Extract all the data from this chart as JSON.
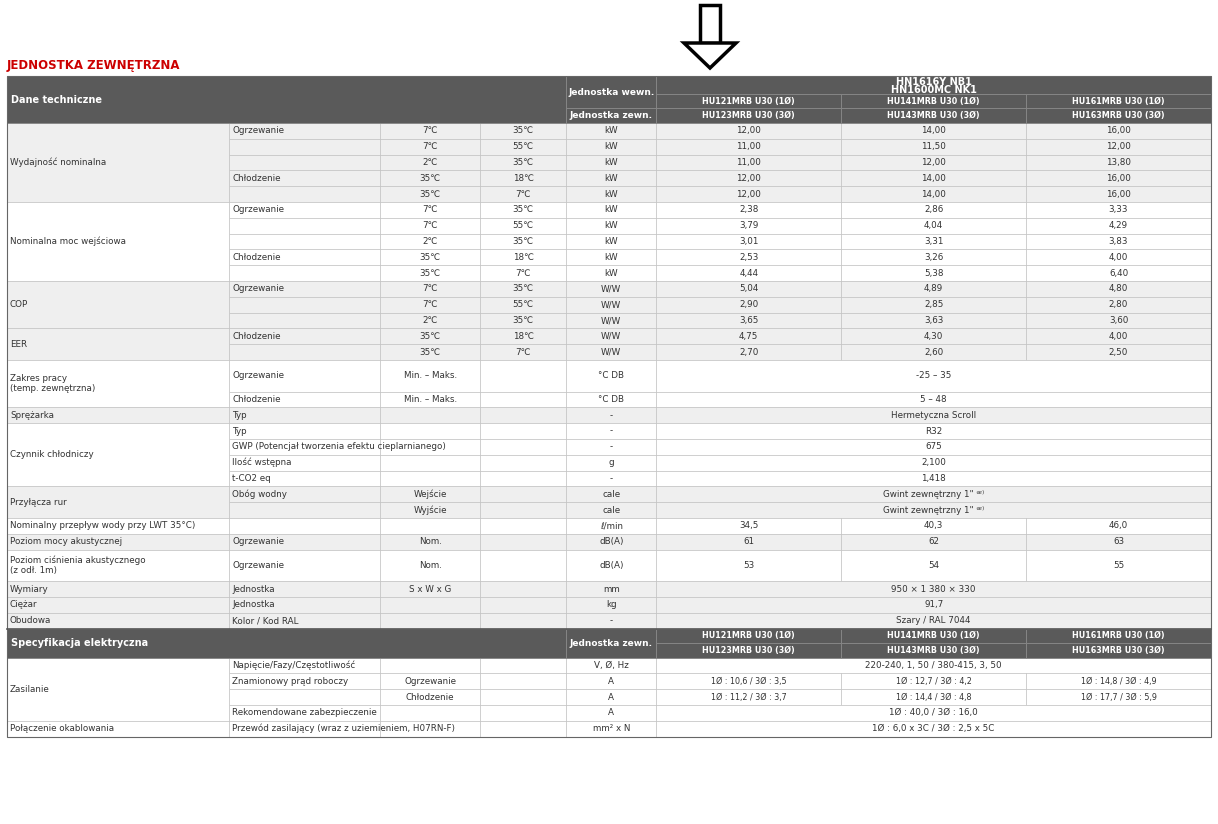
{
  "title": "JEDNOSTKA ZEWNĘTRZNA",
  "title_color": "#cc0000",
  "header_bg": "#5a5a5a",
  "header_fg": "#ffffff",
  "row_bg_light": "#efefef",
  "row_bg_white": "#ffffff",
  "col3_header_line1": "HU121MRB U30 (1Ø)",
  "col3_header_line2": "HU123MRB U30 (3Ø)",
  "col4_header_line1": "HU141MRB U30 (1Ø)",
  "col4_header_line2": "HU143MRB U30 (3Ø)",
  "col5_header_line1": "HU161MRB U30 (1Ø)",
  "col5_header_line2": "HU163MRB U30 (3Ø)",
  "rows": [
    {
      "group": "Wydajność nominalna",
      "sub": "Ogrzewanie",
      "c1": "7℃",
      "c2": "35℃",
      "unit": "kW",
      "v1": "12,00",
      "v2": "14,00",
      "v3": "16,00",
      "bg": "light"
    },
    {
      "group": "",
      "sub": "",
      "c1": "7℃",
      "c2": "55℃",
      "unit": "kW",
      "v1": "11,00",
      "v2": "11,50",
      "v3": "12,00",
      "bg": "light"
    },
    {
      "group": "",
      "sub": "",
      "c1": "2℃",
      "c2": "35℃",
      "unit": "kW",
      "v1": "11,00",
      "v2": "12,00",
      "v3": "13,80",
      "bg": "light"
    },
    {
      "group": "",
      "sub": "Chłodzenie",
      "c1": "35℃",
      "c2": "18℃",
      "unit": "kW",
      "v1": "12,00",
      "v2": "14,00",
      "v3": "16,00",
      "bg": "light"
    },
    {
      "group": "",
      "sub": "",
      "c1": "35℃",
      "c2": "7℃",
      "unit": "kW",
      "v1": "12,00",
      "v2": "14,00",
      "v3": "16,00",
      "bg": "light"
    },
    {
      "group": "Nominalna moc wejściowa",
      "sub": "Ogrzewanie",
      "c1": "7℃",
      "c2": "35℃",
      "unit": "kW",
      "v1": "2,38",
      "v2": "2,86",
      "v3": "3,33",
      "bg": "white"
    },
    {
      "group": "",
      "sub": "",
      "c1": "7℃",
      "c2": "55℃",
      "unit": "kW",
      "v1": "3,79",
      "v2": "4,04",
      "v3": "4,29",
      "bg": "white"
    },
    {
      "group": "",
      "sub": "",
      "c1": "2℃",
      "c2": "35℃",
      "unit": "kW",
      "v1": "3,01",
      "v2": "3,31",
      "v3": "3,83",
      "bg": "white"
    },
    {
      "group": "",
      "sub": "Chłodzenie",
      "c1": "35℃",
      "c2": "18℃",
      "unit": "kW",
      "v1": "2,53",
      "v2": "3,26",
      "v3": "4,00",
      "bg": "white"
    },
    {
      "group": "",
      "sub": "",
      "c1": "35℃",
      "c2": "7℃",
      "unit": "kW",
      "v1": "4,44",
      "v2": "5,38",
      "v3": "6,40",
      "bg": "white"
    },
    {
      "group": "COP",
      "sub": "Ogrzewanie",
      "c1": "7℃",
      "c2": "35℃",
      "unit": "W/W",
      "v1": "5,04",
      "v2": "4,89",
      "v3": "4,80",
      "bg": "light"
    },
    {
      "group": "",
      "sub": "",
      "c1": "7℃",
      "c2": "55℃",
      "unit": "W/W",
      "v1": "2,90",
      "v2": "2,85",
      "v3": "2,80",
      "bg": "light"
    },
    {
      "group": "",
      "sub": "",
      "c1": "2℃",
      "c2": "35℃",
      "unit": "W/W",
      "v1": "3,65",
      "v2": "3,63",
      "v3": "3,60",
      "bg": "light"
    },
    {
      "group": "EER",
      "sub": "Chłodzenie",
      "c1": "35℃",
      "c2": "18℃",
      "unit": "W/W",
      "v1": "4,75",
      "v2": "4,30",
      "v3": "4,00",
      "bg": "light"
    },
    {
      "group": "",
      "sub": "",
      "c1": "35℃",
      "c2": "7℃",
      "unit": "W/W",
      "v1": "2,70",
      "v2": "2,60",
      "v3": "2,50",
      "bg": "light"
    },
    {
      "group": "Zakres pracy\n(temp. zewnętrzna)",
      "sub": "Ogrzewanie",
      "c1": "Min. – Maks.",
      "c2": "",
      "unit": "°C DB",
      "v1": "",
      "v2": "-25 – 35",
      "v3": "",
      "bg": "white",
      "span": true
    },
    {
      "group": "",
      "sub": "Chłodzenie",
      "c1": "Min. – Maks.",
      "c2": "",
      "unit": "°C DB",
      "v1": "",
      "v2": "5 – 48",
      "v3": "",
      "bg": "white",
      "span": true
    },
    {
      "group": "Sprężarka",
      "sub": "Typ",
      "c1": "",
      "c2": "",
      "unit": "-",
      "v1": "",
      "v2": "Hermetyczna Scroll",
      "v3": "",
      "bg": "light",
      "span": true
    },
    {
      "group": "Czynnik chłodniczy",
      "sub": "Typ",
      "c1": "",
      "c2": "",
      "unit": "-",
      "v1": "",
      "v2": "R32",
      "v3": "",
      "bg": "white",
      "span": true
    },
    {
      "group": "",
      "sub": "GWP (Potencjał tworzenia efektu cieplarnianego)",
      "c1": "",
      "c2": "",
      "unit": "-",
      "v1": "",
      "v2": "675",
      "v3": "",
      "bg": "white",
      "span": true
    },
    {
      "group": "",
      "sub": "Ilość wstępna",
      "c1": "",
      "c2": "",
      "unit": "g",
      "v1": "",
      "v2": "2,100",
      "v3": "",
      "bg": "white",
      "span": true
    },
    {
      "group": "",
      "sub": "t-CO2 eq",
      "c1": "",
      "c2": "",
      "unit": "-",
      "v1": "",
      "v2": "1,418",
      "v3": "",
      "bg": "white",
      "span": true
    },
    {
      "group": "Przyłącza rur",
      "sub": "Obóg wodny",
      "c1": "Wejście",
      "c2": "",
      "unit": "cale",
      "v1": "",
      "v2": "Gwint zewnętrzny 1\" ᵆ⁾",
      "v3": "",
      "bg": "light",
      "span": true
    },
    {
      "group": "",
      "sub": "",
      "c1": "Wyjście",
      "c2": "",
      "unit": "cale",
      "v1": "",
      "v2": "Gwint zewnętrzny 1\" ᵆ⁾",
      "v3": "",
      "bg": "light",
      "span": true
    },
    {
      "group": "Nominalny przepływ wody przy LWT 35°C)",
      "sub": "",
      "c1": "",
      "c2": "",
      "unit": "ℓ/min",
      "v1": "34,5",
      "v2": "40,3",
      "v3": "46,0",
      "bg": "white"
    },
    {
      "group": "Poziom mocy akustycznej",
      "sub": "Ogrzewanie",
      "c1": "Nom.",
      "c2": "",
      "unit": "dB(A)",
      "v1": "61",
      "v2": "62",
      "v3": "63",
      "bg": "light"
    },
    {
      "group": "Poziom ciśnienia akustycznego\n(z odł. 1m)",
      "sub": "Ogrzewanie",
      "c1": "Nom.",
      "c2": "",
      "unit": "dB(A)",
      "v1": "53",
      "v2": "54",
      "v3": "55",
      "bg": "white"
    },
    {
      "group": "Wymiary",
      "sub": "Jednostka",
      "c1": "S x W x G",
      "c2": "",
      "unit": "mm",
      "v1": "",
      "v2": "950 × 1 380 × 330",
      "v3": "",
      "bg": "light",
      "span": true
    },
    {
      "group": "Ciężar",
      "sub": "Jednostka",
      "c1": "",
      "c2": "",
      "unit": "kg",
      "v1": "",
      "v2": "91,7",
      "v3": "",
      "bg": "light",
      "span": true
    },
    {
      "group": "Obudowa",
      "sub": "Kolor / Kod RAL",
      "c1": "",
      "c2": "",
      "unit": "-",
      "v1": "",
      "v2": "Szary / RAL 7044",
      "v3": "",
      "bg": "light",
      "span": true
    }
  ],
  "elec_rows": [
    {
      "group": "Zasilanie",
      "sub": "Napięcie/Fazy/Częstotliwość",
      "c1": "",
      "c2": "",
      "unit": "V, Ø, Hz",
      "v1": "",
      "v2": "220-240, 1, 50 / 380-415, 3, 50",
      "v3": "",
      "bg": "white",
      "span": true
    },
    {
      "group": "",
      "sub": "Znamionowy prąd roboczy",
      "c1": "Ogrzewanie",
      "c2": "",
      "unit": "A",
      "v1": "1Ø : 10,6 / 3Ø : 3,5",
      "v2": "1Ø : 12,7 / 3Ø : 4,2",
      "v3": "1Ø : 14,8 / 3Ø : 4,9",
      "bg": "white"
    },
    {
      "group": "",
      "sub": "",
      "c1": "Chłodzenie",
      "c2": "",
      "unit": "A",
      "v1": "1Ø : 11,2 / 3Ø : 3,7",
      "v2": "1Ø : 14,4 / 3Ø : 4,8",
      "v3": "1Ø : 17,7 / 3Ø : 5,9",
      "bg": "white"
    },
    {
      "group": "",
      "sub": "Rekomendowane zabezpieczenie",
      "c1": "",
      "c2": "",
      "unit": "A",
      "v1": "",
      "v2": "1Ø : 40,0 / 3Ø : 16,0",
      "v3": "",
      "bg": "white",
      "span": true
    },
    {
      "group": "Połączenie okablowania",
      "sub": "Przewód zasilający (wraz z uziemieniem, H07RN-F)",
      "c1": "",
      "c2": "",
      "unit": "mm² x N",
      "v1": "",
      "v2": "1Ø : 6,0 x 3C / 3Ø : 2,5 x 5C",
      "v3": "",
      "bg": "white",
      "span": true
    }
  ]
}
